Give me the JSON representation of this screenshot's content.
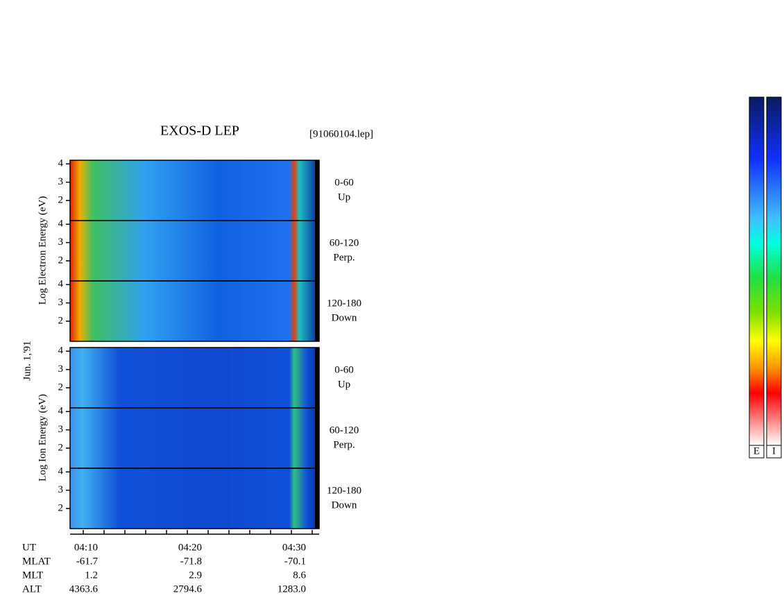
{
  "chart_data": {
    "type": "spectrogram",
    "title": "EXOS-D LEP",
    "file_label": "[91060104.lep]",
    "date_label": "Jun. 1,'91",
    "ylim": [
      0.9,
      4.2
    ],
    "yticks": [
      2,
      3,
      4
    ],
    "groups": [
      {
        "ylabel": "Log  Electron  Energy (eV)",
        "panels": [
          {
            "angle": "0-60",
            "direction": "Up"
          },
          {
            "angle": "60-120",
            "direction": "Perp."
          },
          {
            "angle": "120-180",
            "direction": "Down"
          }
        ]
      },
      {
        "ylabel": "Log  Ion  Energy (eV)",
        "panels": [
          {
            "angle": "0-60",
            "direction": "Up"
          },
          {
            "angle": "60-120",
            "direction": "Perp."
          },
          {
            "angle": "120-180",
            "direction": "Down"
          }
        ]
      }
    ],
    "orbit_table": [
      {
        "name": "UT",
        "values": [
          "04:10",
          "04:20",
          "04:30"
        ]
      },
      {
        "name": "MLAT",
        "values": [
          "-61.7",
          "-71.8",
          "-70.1"
        ]
      },
      {
        "name": "MLT",
        "values": [
          "1.2",
          "2.9",
          "8.6"
        ]
      },
      {
        "name": "ALT",
        "values": [
          "4363.6",
          "2794.6",
          "1283.0"
        ]
      }
    ],
    "colorbars": [
      "E",
      "I"
    ]
  }
}
